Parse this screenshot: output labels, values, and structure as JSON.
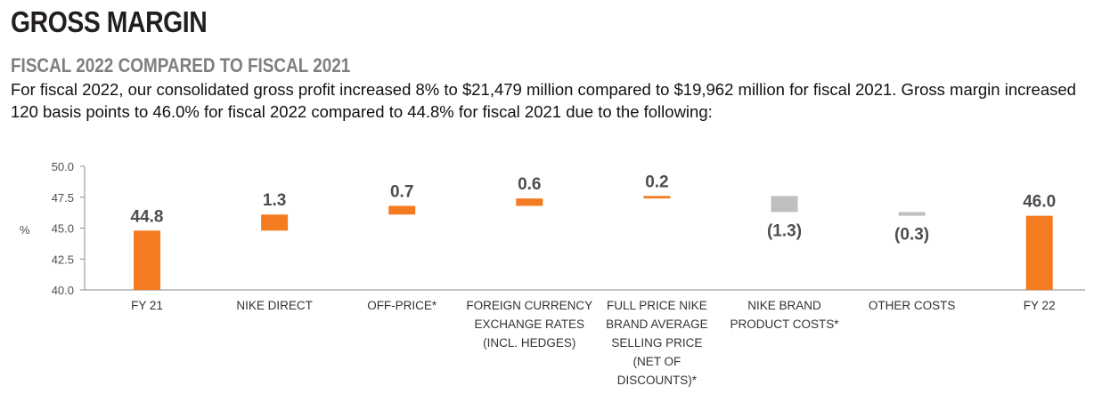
{
  "page": {
    "title": "GROSS MARGIN",
    "subtitle": "FISCAL 2022 COMPARED TO FISCAL 2021",
    "paragraph": "For fiscal 2022, our consolidated gross profit increased 8% to $21,479 million compared to $19,962 million for fiscal 2021. Gross margin increased 120 basis points to 46.0% for fiscal 2022 compared to 44.8% for fiscal 2021 due to the following:"
  },
  "colors": {
    "increase": "#f47b20",
    "decrease": "#bfbfbf",
    "total": "#f47b20",
    "axis": "#8c8c8c"
  },
  "chart_data": {
    "type": "bar",
    "subtype": "waterfall",
    "title": "",
    "xlabel": "",
    "ylabel": "%",
    "ylim": [
      40.0,
      50.0
    ],
    "yticks": [
      "50.0",
      "47.5",
      "45.0",
      "42.5",
      "40.0"
    ],
    "grid": false,
    "categories": [
      [
        "FY 21"
      ],
      [
        "NIKE DIRECT"
      ],
      [
        "OFF-PRICE*"
      ],
      [
        "FOREIGN CURRENCY",
        "EXCHANGE RATES",
        "(INCL. HEDGES)"
      ],
      [
        "FULL PRICE NIKE",
        "BRAND AVERAGE",
        "SELLING PRICE",
        "(NET OF",
        "DISCOUNTS)*"
      ],
      [
        "NIKE BRAND",
        "PRODUCT COSTS*"
      ],
      [
        "OTHER COSTS"
      ],
      [
        "FY 22"
      ]
    ],
    "steps": [
      {
        "kind": "total",
        "value": 44.8,
        "label": "44.8"
      },
      {
        "kind": "increase",
        "value": 1.3,
        "label": "1.3"
      },
      {
        "kind": "increase",
        "value": 0.7,
        "label": "0.7"
      },
      {
        "kind": "increase",
        "value": 0.6,
        "label": "0.6"
      },
      {
        "kind": "increase",
        "value": 0.2,
        "label": "0.2"
      },
      {
        "kind": "decrease",
        "value": -1.3,
        "label": "(1.3)"
      },
      {
        "kind": "decrease",
        "value": -0.3,
        "label": "(0.3)"
      },
      {
        "kind": "total",
        "value": 46.0,
        "label": "46.0"
      }
    ]
  }
}
